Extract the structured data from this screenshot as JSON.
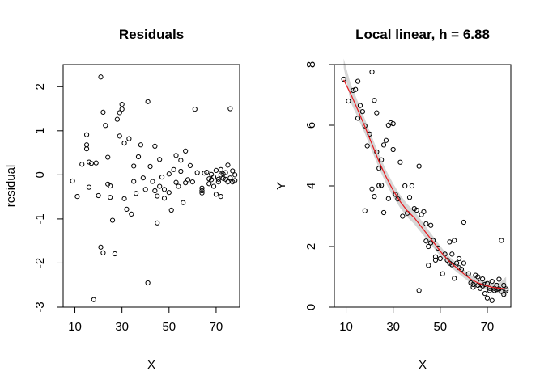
{
  "chart_data": [
    {
      "type": "scatter",
      "title": "Residuals",
      "xlabel": "X",
      "ylabel": "residual",
      "xlim": [
        5,
        80
      ],
      "ylim": [
        -3,
        2.5
      ],
      "xticks": [
        "10",
        "30",
        "50",
        "70"
      ],
      "xtick_values": [
        10,
        30,
        50,
        70
      ],
      "yticks": [
        "-3",
        "-2",
        "-1",
        "0",
        "1",
        "2"
      ],
      "ytick_values": [
        -3,
        -2,
        -1,
        0,
        1,
        2
      ],
      "grid": false,
      "point_color": "#000000",
      "series": [
        {
          "points": [
            [
              9,
              -0.14
            ],
            [
              11,
              -0.49
            ],
            [
              13,
              0.24
            ],
            [
              15,
              0.91
            ],
            [
              15,
              0.68
            ],
            [
              15,
              0.59
            ],
            [
              16,
              -0.28
            ],
            [
              16,
              0.29
            ],
            [
              17,
              0.26
            ],
            [
              18,
              -2.83
            ],
            [
              19,
              0.27
            ],
            [
              20,
              -0.47
            ],
            [
              21,
              2.22
            ],
            [
              21,
              -1.64
            ],
            [
              22,
              1.42
            ],
            [
              22,
              -1.77
            ],
            [
              23,
              1.12
            ],
            [
              24,
              0.4
            ],
            [
              24,
              -0.21
            ],
            [
              25,
              -0.51
            ],
            [
              25,
              -0.25
            ],
            [
              26,
              -1.03
            ],
            [
              27,
              -1.79
            ],
            [
              28,
              1.26
            ],
            [
              29,
              0.88
            ],
            [
              29,
              1.41
            ],
            [
              30,
              1.49
            ],
            [
              30,
              1.6
            ],
            [
              31,
              0.72
            ],
            [
              31,
              -0.54
            ],
            [
              32,
              -0.78
            ],
            [
              33,
              0.82
            ],
            [
              34,
              -0.89
            ],
            [
              35,
              0.2
            ],
            [
              35,
              -0.15
            ],
            [
              36,
              -0.42
            ],
            [
              37,
              0.41
            ],
            [
              38,
              0.68
            ],
            [
              39,
              -0.07
            ],
            [
              40,
              -0.33
            ],
            [
              41,
              1.66
            ],
            [
              41,
              -2.45
            ],
            [
              42,
              0.19
            ],
            [
              43,
              -0.15
            ],
            [
              44,
              0.65
            ],
            [
              44,
              -0.36
            ],
            [
              45,
              -1.09
            ],
            [
              45,
              -0.48
            ],
            [
              46,
              0.35
            ],
            [
              46,
              -0.26
            ],
            [
              47,
              -0.05
            ],
            [
              48,
              -0.33
            ],
            [
              48,
              -0.53
            ],
            [
              50,
              -0.4
            ],
            [
              50,
              0.02
            ],
            [
              51,
              -0.8
            ],
            [
              52,
              0.12
            ],
            [
              53,
              -0.17
            ],
            [
              53,
              0.44
            ],
            [
              54,
              -0.26
            ],
            [
              55,
              0.08
            ],
            [
              55,
              0.33
            ],
            [
              56,
              -0.63
            ],
            [
              57,
              0.54
            ],
            [
              57,
              -0.18
            ],
            [
              58,
              -0.11
            ],
            [
              59,
              0.21
            ],
            [
              60,
              -0.16
            ],
            [
              61,
              1.49
            ],
            [
              62,
              0.05
            ],
            [
              64,
              -0.36
            ],
            [
              64,
              -0.3
            ],
            [
              64,
              -0.41
            ],
            [
              65,
              0.04
            ],
            [
              66,
              0.06
            ],
            [
              67,
              -0.09
            ],
            [
              67,
              -0.2
            ],
            [
              68,
              -0.11
            ],
            [
              68,
              0.01
            ],
            [
              69,
              -0.26
            ],
            [
              69,
              -0.05
            ],
            [
              70,
              -0.44
            ],
            [
              70,
              0.1
            ],
            [
              71,
              -0.16
            ],
            [
              71,
              -0.1
            ],
            [
              72,
              0.0
            ],
            [
              72,
              -0.49
            ],
            [
              72,
              0.12
            ],
            [
              73,
              -0.08
            ],
            [
              73,
              0.02
            ],
            [
              74,
              -0.1
            ],
            [
              74,
              0.05
            ],
            [
              75,
              0.22
            ],
            [
              75,
              -0.16
            ],
            [
              76,
              -0.07
            ],
            [
              76,
              1.5
            ],
            [
              77,
              -0.16
            ],
            [
              77,
              0.09
            ],
            [
              78,
              0.0
            ],
            [
              78,
              -0.13
            ]
          ]
        }
      ]
    },
    {
      "type": "scatter",
      "title": "Local linear, h =  6.88",
      "xlabel": "X",
      "ylabel": "Y",
      "xlim": [
        5,
        80
      ],
      "ylim": [
        0,
        8
      ],
      "xticks": [
        "10",
        "30",
        "50",
        "70"
      ],
      "xtick_values": [
        10,
        30,
        50,
        70
      ],
      "yticks": [
        "0",
        "2",
        "4",
        "6",
        "8"
      ],
      "ytick_values": [
        0,
        2,
        4,
        6,
        8
      ],
      "grid": false,
      "point_color": "#000000",
      "fit_color": "#e8191e",
      "band_color": "#c8c8c8",
      "series": [
        {
          "points": [
            [
              9,
              7.52
            ],
            [
              11,
              6.8
            ],
            [
              13,
              7.15
            ],
            [
              14,
              7.18
            ],
            [
              15,
              7.45
            ],
            [
              15,
              6.23
            ],
            [
              16,
              6.65
            ],
            [
              17,
              6.45
            ],
            [
              18,
              5.98
            ],
            [
              18,
              3.18
            ],
            [
              19,
              5.32
            ],
            [
              20,
              5.71
            ],
            [
              21,
              7.76
            ],
            [
              21,
              3.9
            ],
            [
              22,
              6.82
            ],
            [
              22,
              3.65
            ],
            [
              23,
              6.41
            ],
            [
              23,
              5.12
            ],
            [
              24,
              4.01
            ],
            [
              24,
              4.58
            ],
            [
              25,
              4.86
            ],
            [
              25,
              4.02
            ],
            [
              26,
              3.12
            ],
            [
              26,
              5.35
            ],
            [
              27,
              5.5
            ],
            [
              28,
              3.58
            ],
            [
              28,
              6.0
            ],
            [
              29,
              6.08
            ],
            [
              30,
              5.2
            ],
            [
              30,
              6.05
            ],
            [
              31,
              3.72
            ],
            [
              32,
              3.57
            ],
            [
              33,
              4.78
            ],
            [
              34,
              3.0
            ],
            [
              35,
              4.0
            ],
            [
              36,
              3.1
            ],
            [
              37,
              3.62
            ],
            [
              38,
              4.0
            ],
            [
              39,
              3.25
            ],
            [
              40,
              3.2
            ],
            [
              41,
              4.65
            ],
            [
              41,
              0.55
            ],
            [
              42,
              3.05
            ],
            [
              43,
              3.15
            ],
            [
              44,
              2.75
            ],
            [
              44,
              2.18
            ],
            [
              45,
              1.38
            ],
            [
              45,
              2.0
            ],
            [
              46,
              2.7
            ],
            [
              46,
              2.12
            ],
            [
              47,
              2.2
            ],
            [
              48,
              1.66
            ],
            [
              48,
              1.55
            ],
            [
              49,
              1.95
            ],
            [
              50,
              1.6
            ],
            [
              51,
              1.1
            ],
            [
              52,
              1.75
            ],
            [
              53,
              1.55
            ],
            [
              54,
              1.45
            ],
            [
              54,
              2.15
            ],
            [
              55,
              1.4
            ],
            [
              55,
              1.75
            ],
            [
              56,
              0.95
            ],
            [
              56,
              2.2
            ],
            [
              57,
              1.45
            ],
            [
              58,
              1.6
            ],
            [
              58,
              1.3
            ],
            [
              59,
              1.25
            ],
            [
              60,
              1.45
            ],
            [
              60,
              2.8
            ],
            [
              62,
              1.1
            ],
            [
              63,
              0.8
            ],
            [
              64,
              0.66
            ],
            [
              64,
              0.75
            ],
            [
              65,
              1.05
            ],
            [
              66,
              1.0
            ],
            [
              66,
              0.72
            ],
            [
              67,
              0.82
            ],
            [
              67,
              0.62
            ],
            [
              68,
              0.7
            ],
            [
              68,
              0.93
            ],
            [
              69,
              0.45
            ],
            [
              69,
              0.75
            ],
            [
              70,
              0.78
            ],
            [
              70,
              0.3
            ],
            [
              71,
              0.62
            ],
            [
              71,
              0.55
            ],
            [
              72,
              0.85
            ],
            [
              72,
              0.22
            ],
            [
              73,
              0.62
            ],
            [
              73,
              0.55
            ],
            [
              74,
              0.72
            ],
            [
              74,
              0.58
            ],
            [
              75,
              0.6
            ],
            [
              75,
              0.92
            ],
            [
              76,
              0.52
            ],
            [
              76,
              2.2
            ],
            [
              77,
              0.42
            ],
            [
              77,
              0.72
            ],
            [
              78,
              0.6
            ],
            [
              78,
              0.55
            ]
          ]
        },
        {
          "name": "",
          "type": "line",
          "x": [
            9,
            12,
            15,
            18,
            21,
            24,
            27,
            30,
            33,
            36,
            39,
            42,
            45,
            48,
            51,
            54,
            57,
            60,
            63,
            66,
            69,
            72,
            75,
            78
          ],
          "y": [
            7.5,
            7.03,
            6.5,
            5.95,
            5.38,
            4.8,
            4.3,
            3.85,
            3.48,
            3.18,
            2.95,
            2.65,
            2.35,
            2.05,
            1.75,
            1.5,
            1.3,
            1.1,
            0.92,
            0.8,
            0.72,
            0.66,
            0.63,
            0.6
          ],
          "lower": [
            7.9,
            6.75,
            6.25,
            5.72,
            5.15,
            4.58,
            4.08,
            3.64,
            3.27,
            2.97,
            2.74,
            2.45,
            2.17,
            1.88,
            1.59,
            1.35,
            1.16,
            0.97,
            0.79,
            0.67,
            0.59,
            0.53,
            0.48,
            0.35
          ],
          "upper": [
            8.25,
            7.35,
            6.78,
            6.2,
            5.62,
            5.03,
            4.52,
            4.07,
            3.7,
            3.4,
            3.17,
            2.86,
            2.54,
            2.23,
            1.92,
            1.66,
            1.45,
            1.24,
            1.06,
            0.94,
            0.86,
            0.8,
            0.79,
            1.0
          ]
        }
      ]
    }
  ]
}
